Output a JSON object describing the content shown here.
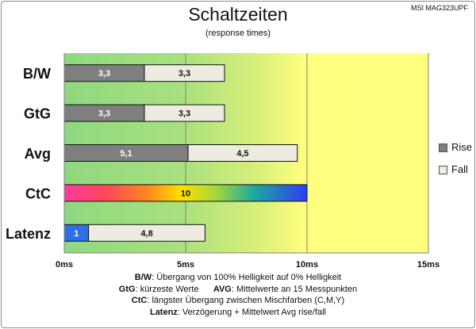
{
  "header": {
    "title": "Schaltzeiten",
    "subtitle": "(response times)",
    "model": "MSI MAG323UPF"
  },
  "legend": {
    "rise": "Rise",
    "fall": "Fall"
  },
  "colors": {
    "rise": "#7f7f7f",
    "fall": "#eeece1",
    "latenz_rise": "#2e6ee6",
    "grid": "#7f7f7f",
    "background_good": "#92d980",
    "background_mid": "#dff277",
    "background_bad": "#ffff7f"
  },
  "chart_data": {
    "type": "bar",
    "orientation": "horizontal",
    "stacked": true,
    "title": "Schaltzeiten",
    "subtitle": "(response times)",
    "categories": [
      "B/W",
      "GtG",
      "Avg",
      "CtC",
      "Latenz"
    ],
    "series": [
      {
        "name": "Rise",
        "values": [
          3.3,
          3.3,
          5.1,
          10,
          1
        ]
      },
      {
        "name": "Fall",
        "values": [
          3.3,
          3.3,
          4.5,
          null,
          4.8
        ]
      }
    ],
    "value_labels": [
      [
        "3,3",
        "3,3"
      ],
      [
        "3,3",
        "3,3"
      ],
      [
        "5,1",
        "4,5"
      ],
      [
        "10",
        ""
      ],
      [
        "1",
        "4,8"
      ]
    ],
    "xlim": [
      0,
      15
    ],
    "xticks": [
      0,
      5,
      10,
      15
    ],
    "xtick_labels": [
      "0ms",
      "5ms",
      "10ms",
      "15ms"
    ],
    "ctc_fill": "rainbow gradient",
    "background_zones": "green (0-5ms) to yellow (10-15ms)",
    "legend_position": "right"
  },
  "notes": [
    {
      "key": "B/W",
      "text": ":  Übergang von 100% Helligkeit auf 0% Helligkeit"
    },
    {
      "key": "GtG",
      "text": ": kürzeste  Werte",
      "key2": "AVG",
      "text2": ": Mittelwerte  an 15 Messpunkten"
    },
    {
      "key": "CtC",
      "text": ": längster Übergang zwischen Mischfarben  (C,M,Y)"
    },
    {
      "key": "Latenz",
      "text": ": Verzögerung  + Mittelwert  Avg rise/fall"
    }
  ]
}
